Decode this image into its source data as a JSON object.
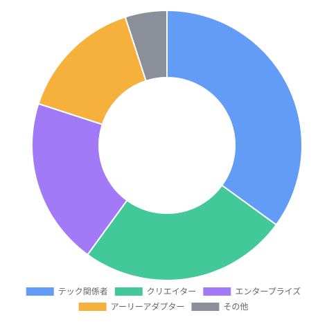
{
  "chart_data": {
    "type": "pie",
    "variant": "doughnut",
    "categories": [
      "テック関係者",
      "クリエイター",
      "エンタープライズ",
      "アーリーアダプター",
      "その他"
    ],
    "values": [
      35,
      25,
      20,
      15,
      5
    ],
    "colors": [
      "#639cf7",
      "#43c999",
      "#a27af7",
      "#f6b03c",
      "#8b8f99"
    ],
    "title": "",
    "legend": {
      "position": "bottom",
      "items": [
        {
          "label": "テック関係者",
          "color": "#639cf7"
        },
        {
          "label": "クリエイター",
          "color": "#43c999"
        },
        {
          "label": "エンタープライズ",
          "color": "#a27af7"
        },
        {
          "label": "アーリーアダプター",
          "color": "#f6b03c"
        },
        {
          "label": "その他",
          "color": "#8b8f99"
        }
      ]
    }
  }
}
